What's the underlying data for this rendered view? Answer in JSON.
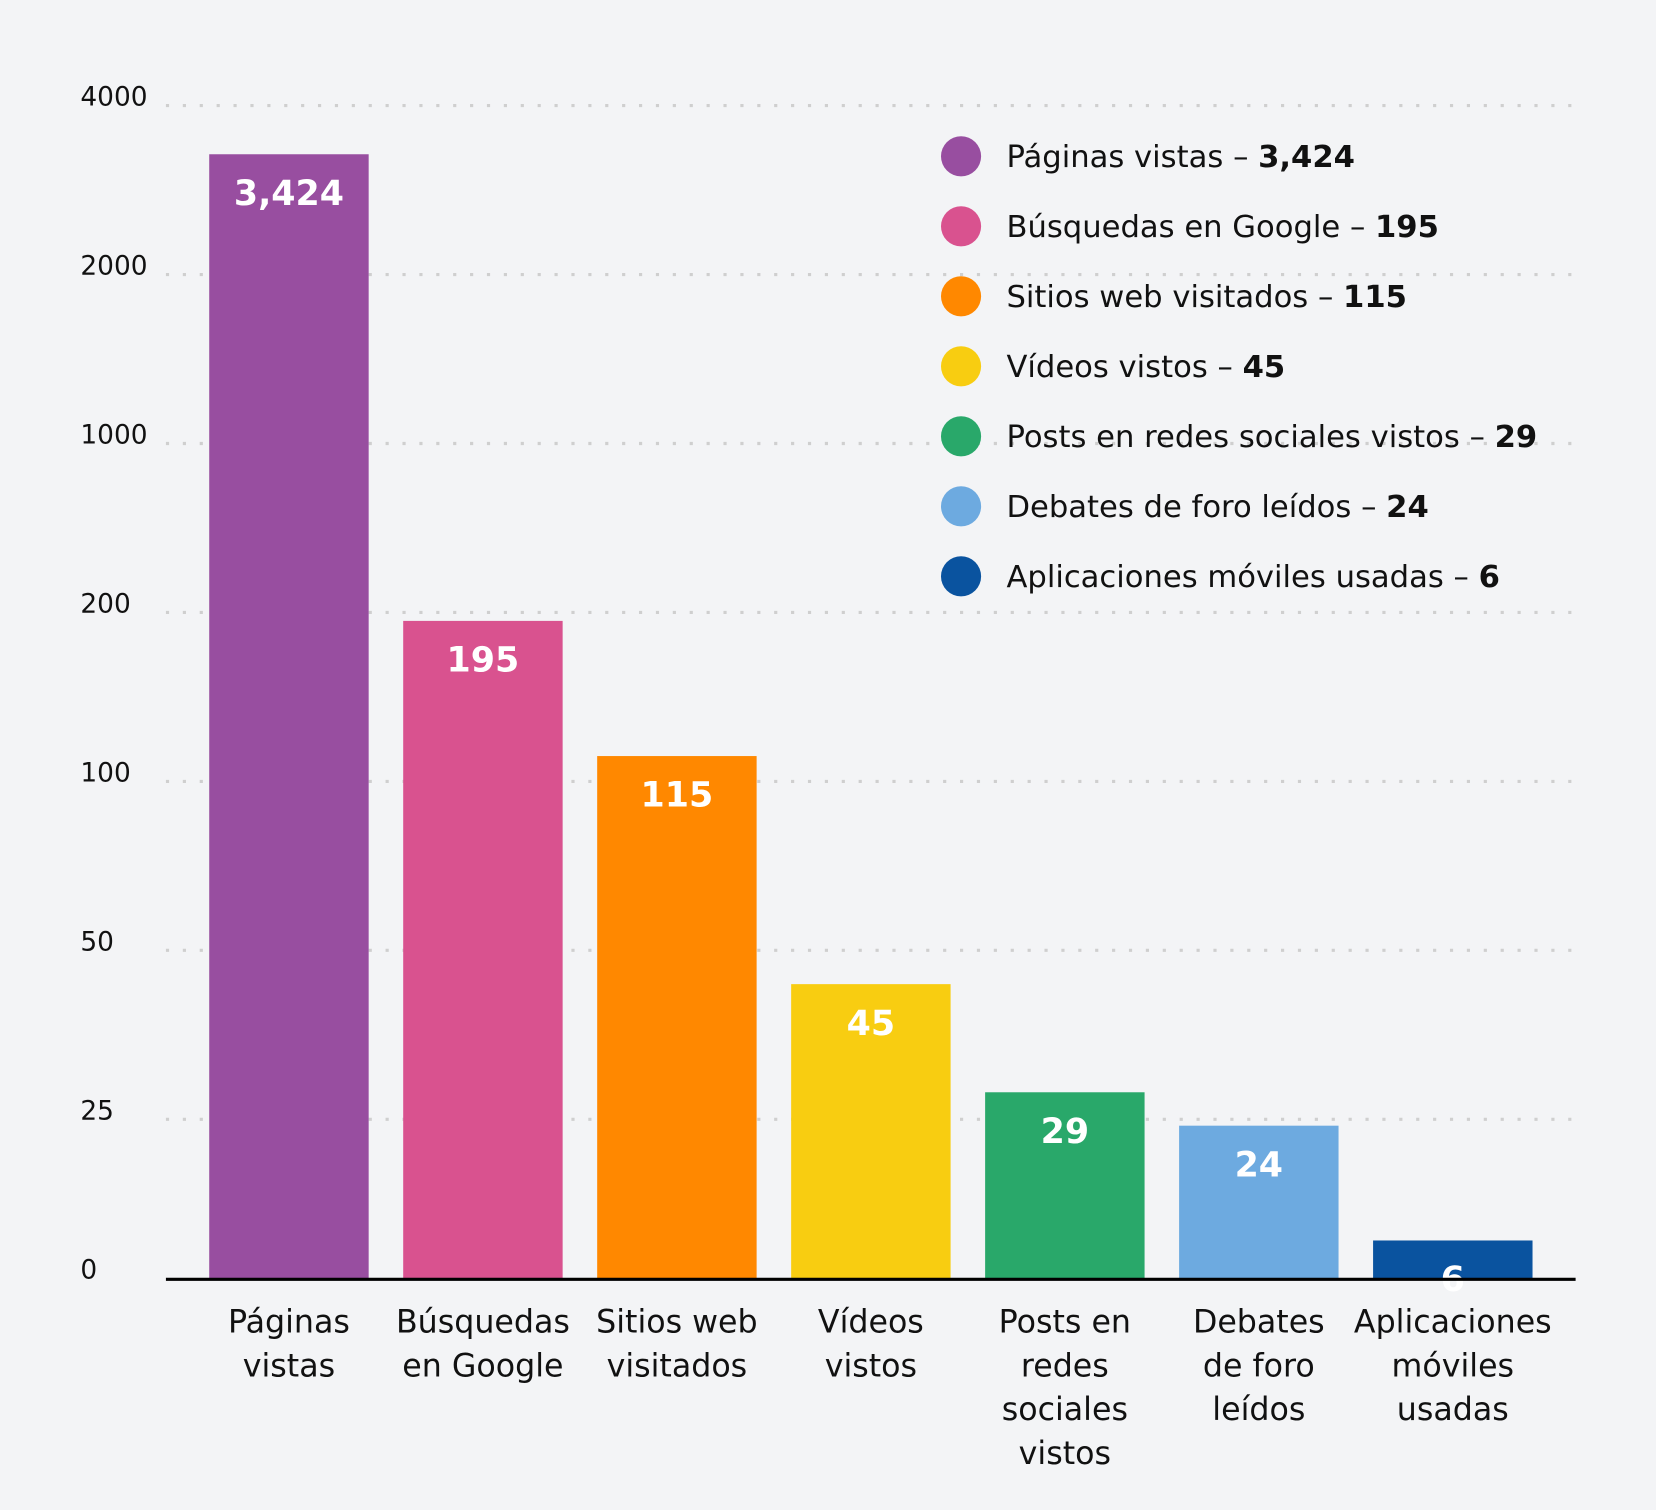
{
  "chart_data": {
    "type": "bar",
    "categories": [
      "Páginas vistas",
      "Búsquedas en Google",
      "Sitios web visitados",
      "Vídeos vistos",
      "Posts en redes sociales vistos",
      "Debates de foro leídos",
      "Aplicaciones móviles usadas"
    ],
    "category_lines": [
      [
        "Páginas",
        "vistas"
      ],
      [
        "Búsquedas",
        "en Google"
      ],
      [
        "Sitios web",
        "visitados"
      ],
      [
        "Vídeos",
        "vistos"
      ],
      [
        "Posts en",
        "redes",
        "sociales",
        "vistos"
      ],
      [
        "Debates",
        "de foro",
        "leídos"
      ],
      [
        "Aplicaciones",
        "móviles",
        "usadas"
      ]
    ],
    "values": [
      3424,
      195,
      115,
      45,
      29,
      24,
      6
    ],
    "value_labels": [
      "3,424",
      "195",
      "115",
      "45",
      "29",
      "24",
      "6"
    ],
    "colors": [
      "#984ea0",
      "#d9528f",
      "#ff8800",
      "#f8cd11",
      "#29a86a",
      "#6daae0",
      "#0a539f"
    ],
    "y_ticks": [
      0,
      25,
      50,
      100,
      200,
      1000,
      2000,
      4000
    ],
    "y_tick_labels": [
      "0",
      "25",
      "50",
      "100",
      "200",
      "1000",
      "2000",
      "4000"
    ],
    "y_scale": "piecewise (equal spacing between ticks)",
    "ylim": [
      0,
      4000
    ],
    "grid": "horizontal dotted",
    "legend_position": "top-right",
    "legend": [
      {
        "label": "Páginas vistas – ",
        "value": "3,424"
      },
      {
        "label": "Búsquedas en Google – ",
        "value": "195"
      },
      {
        "label": "Sitios web visitados – ",
        "value": "115"
      },
      {
        "label": "Vídeos vistos – ",
        "value": "45"
      },
      {
        "label": "Posts en redes sociales vistos – ",
        "value": "29"
      },
      {
        "label": "Debates de foro leídos – ",
        "value": "24"
      },
      {
        "label": "Aplicaciones móviles usadas – ",
        "value": "6"
      }
    ],
    "background": "#f3f4f6"
  }
}
